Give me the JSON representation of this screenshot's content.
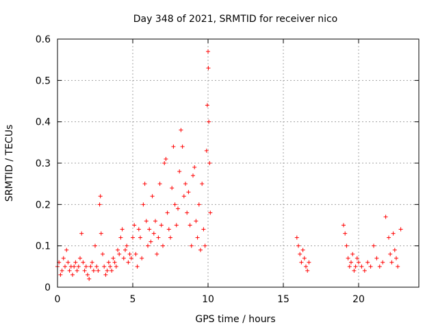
{
  "chart_data": {
    "type": "scatter",
    "title": "Day 348 of 2021, SRMTID for receiver nico",
    "xlabel": "GPS time / hours",
    "ylabel": "SRMTID / TECUs",
    "xlim": [
      0,
      24
    ],
    "ylim": [
      0,
      0.6
    ],
    "xticks": [
      0,
      5,
      10,
      15,
      20
    ],
    "yticks": [
      0,
      0.1,
      0.2,
      0.3,
      0.4,
      0.5,
      0.6
    ],
    "xtick_labels": [
      "0",
      "5",
      "10",
      "15",
      "20"
    ],
    "ytick_labels": [
      "0",
      "0.1",
      "0.2",
      "0.3",
      "0.4",
      "0.5",
      "0.6"
    ],
    "grid": true,
    "marker": "+",
    "series_color": "#ff0000",
    "series": [
      {
        "name": "SRMTID",
        "points": [
          [
            0.0,
            0.05
          ],
          [
            0.1,
            0.06
          ],
          [
            0.2,
            0.03
          ],
          [
            0.3,
            0.04
          ],
          [
            0.4,
            0.07
          ],
          [
            0.5,
            0.05
          ],
          [
            0.6,
            0.09
          ],
          [
            0.7,
            0.06
          ],
          [
            0.8,
            0.04
          ],
          [
            0.9,
            0.05
          ],
          [
            1.0,
            0.03
          ],
          [
            1.1,
            0.05
          ],
          [
            1.2,
            0.06
          ],
          [
            1.3,
            0.04
          ],
          [
            1.4,
            0.05
          ],
          [
            1.5,
            0.07
          ],
          [
            1.6,
            0.13
          ],
          [
            1.7,
            0.06
          ],
          [
            1.8,
            0.04
          ],
          [
            1.9,
            0.05
          ],
          [
            2.0,
            0.03
          ],
          [
            2.1,
            0.02
          ],
          [
            2.2,
            0.05
          ],
          [
            2.3,
            0.06
          ],
          [
            2.4,
            0.04
          ],
          [
            2.5,
            0.1
          ],
          [
            2.6,
            0.05
          ],
          [
            2.7,
            0.04
          ],
          [
            2.8,
            0.2
          ],
          [
            2.85,
            0.22
          ],
          [
            2.9,
            0.13
          ],
          [
            3.0,
            0.08
          ],
          [
            3.1,
            0.05
          ],
          [
            3.2,
            0.03
          ],
          [
            3.3,
            0.04
          ],
          [
            3.4,
            0.06
          ],
          [
            3.5,
            0.05
          ],
          [
            3.6,
            0.04
          ],
          [
            3.7,
            0.07
          ],
          [
            3.8,
            0.06
          ],
          [
            3.9,
            0.05
          ],
          [
            4.0,
            0.09
          ],
          [
            4.1,
            0.08
          ],
          [
            4.2,
            0.12
          ],
          [
            4.3,
            0.14
          ],
          [
            4.4,
            0.07
          ],
          [
            4.5,
            0.09
          ],
          [
            4.6,
            0.1
          ],
          [
            4.7,
            0.06
          ],
          [
            4.8,
            0.08
          ],
          [
            4.9,
            0.07
          ],
          [
            5.0,
            0.12
          ],
          [
            5.1,
            0.15
          ],
          [
            5.2,
            0.08
          ],
          [
            5.3,
            0.05
          ],
          [
            5.4,
            0.14
          ],
          [
            5.5,
            0.12
          ],
          [
            5.6,
            0.07
          ],
          [
            5.7,
            0.2
          ],
          [
            5.8,
            0.25
          ],
          [
            5.9,
            0.16
          ],
          [
            6.0,
            0.1
          ],
          [
            6.1,
            0.14
          ],
          [
            6.2,
            0.11
          ],
          [
            6.3,
            0.22
          ],
          [
            6.4,
            0.13
          ],
          [
            6.5,
            0.16
          ],
          [
            6.6,
            0.08
          ],
          [
            6.7,
            0.12
          ],
          [
            6.8,
            0.25
          ],
          [
            6.9,
            0.15
          ],
          [
            7.0,
            0.1
          ],
          [
            7.1,
            0.3
          ],
          [
            7.2,
            0.31
          ],
          [
            7.3,
            0.18
          ],
          [
            7.4,
            0.14
          ],
          [
            7.5,
            0.12
          ],
          [
            7.6,
            0.24
          ],
          [
            7.7,
            0.34
          ],
          [
            7.8,
            0.2
          ],
          [
            7.9,
            0.15
          ],
          [
            8.0,
            0.19
          ],
          [
            8.1,
            0.28
          ],
          [
            8.2,
            0.38
          ],
          [
            8.3,
            0.34
          ],
          [
            8.4,
            0.22
          ],
          [
            8.5,
            0.25
          ],
          [
            8.6,
            0.18
          ],
          [
            8.7,
            0.23
          ],
          [
            8.8,
            0.15
          ],
          [
            8.9,
            0.1
          ],
          [
            9.0,
            0.27
          ],
          [
            9.1,
            0.29
          ],
          [
            9.2,
            0.16
          ],
          [
            9.3,
            0.12
          ],
          [
            9.4,
            0.2
          ],
          [
            9.5,
            0.09
          ],
          [
            9.6,
            0.25
          ],
          [
            9.7,
            0.14
          ],
          [
            9.8,
            0.1
          ],
          [
            9.9,
            0.33
          ],
          [
            9.95,
            0.44
          ],
          [
            10.0,
            0.57
          ],
          [
            10.02,
            0.53
          ],
          [
            10.05,
            0.4
          ],
          [
            10.1,
            0.3
          ],
          [
            10.15,
            0.18
          ],
          [
            15.9,
            0.12
          ],
          [
            16.0,
            0.1
          ],
          [
            16.1,
            0.08
          ],
          [
            16.2,
            0.06
          ],
          [
            16.3,
            0.09
          ],
          [
            16.4,
            0.07
          ],
          [
            16.5,
            0.05
          ],
          [
            16.6,
            0.04
          ],
          [
            16.7,
            0.06
          ],
          [
            19.0,
            0.15
          ],
          [
            19.1,
            0.13
          ],
          [
            19.2,
            0.1
          ],
          [
            19.3,
            0.07
          ],
          [
            19.4,
            0.05
          ],
          [
            19.5,
            0.06
          ],
          [
            19.6,
            0.08
          ],
          [
            19.7,
            0.04
          ],
          [
            19.8,
            0.05
          ],
          [
            19.9,
            0.07
          ],
          [
            20.0,
            0.06
          ],
          [
            20.2,
            0.05
          ],
          [
            20.4,
            0.04
          ],
          [
            20.6,
            0.06
          ],
          [
            20.8,
            0.05
          ],
          [
            21.0,
            0.1
          ],
          [
            21.2,
            0.07
          ],
          [
            21.4,
            0.05
          ],
          [
            21.6,
            0.06
          ],
          [
            21.8,
            0.17
          ],
          [
            22.0,
            0.12
          ],
          [
            22.1,
            0.08
          ],
          [
            22.2,
            0.06
          ],
          [
            22.3,
            0.13
          ],
          [
            22.4,
            0.09
          ],
          [
            22.5,
            0.07
          ],
          [
            22.6,
            0.05
          ],
          [
            22.8,
            0.14
          ]
        ]
      }
    ]
  }
}
